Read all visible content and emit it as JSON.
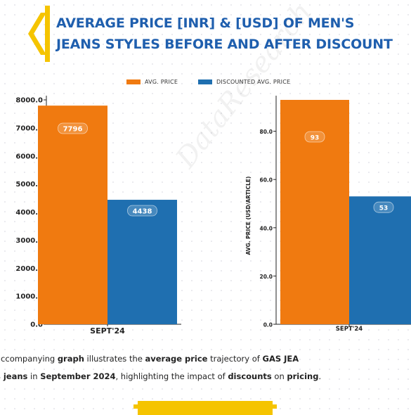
{
  "title": {
    "line1": "AVERAGE PRICE [INR] & [USD] OF MEN'S",
    "line2": "JEANS STYLES BEFORE AND AFTER DISCOUNT"
  },
  "legend": [
    {
      "label": "AVG. PRICE",
      "color": "#f07a10"
    },
    {
      "label": "DISCOUNTED AVG. PRICE",
      "color": "#1f6fb0"
    }
  ],
  "caption": {
    "t1": "accompanying ",
    "b1": "graph",
    "t2": " illustrates the ",
    "b2": "average price",
    "t3": " trajectory of ",
    "b3": "GAS JEA",
    "b4": "s jeans",
    "t4": " in ",
    "b5": "September 2024",
    "t5": ", highlighting the impact of ",
    "b6": "discounts",
    "t6": " on ",
    "b7": "pricing",
    "t7": "."
  },
  "chart_data": [
    {
      "type": "bar",
      "categories": [
        "SEPT'24"
      ],
      "series": [
        {
          "name": "AVG. PRICE",
          "values": [
            7796
          ],
          "color": "#f07a10"
        },
        {
          "name": "DISCOUNTED AVG. PRICE",
          "values": [
            4438
          ],
          "color": "#1f6fb0"
        }
      ],
      "ylabel": "",
      "ylim": [
        0,
        8000
      ],
      "yticks": [
        0,
        1000,
        2000,
        3000,
        4000,
        5000,
        6000,
        7000,
        8000
      ],
      "ytick_labels": [
        "0.0",
        "1000.0",
        "2000.0",
        "3000.0",
        "4000.0",
        "5000.0",
        "6000.0",
        "7000.0",
        "8000.0"
      ],
      "data_labels": [
        "7796",
        "4438"
      ]
    },
    {
      "type": "bar",
      "categories": [
        "SEPT'24"
      ],
      "series": [
        {
          "name": "AVG. PRICE",
          "values": [
            93
          ],
          "color": "#f07a10"
        },
        {
          "name": "DISCOUNTED AVG. PRICE",
          "values": [
            53
          ],
          "color": "#1f6fb0"
        }
      ],
      "ylabel": "AVG. PRICE (USD/ARTICLE)",
      "ylim": [
        0,
        93
      ],
      "yticks": [
        0,
        20,
        40,
        60,
        80
      ],
      "ytick_labels": [
        "0.0",
        "20.0",
        "40.0",
        "60.0",
        "80.0"
      ],
      "data_labels": [
        "93",
        "53"
      ]
    }
  ]
}
